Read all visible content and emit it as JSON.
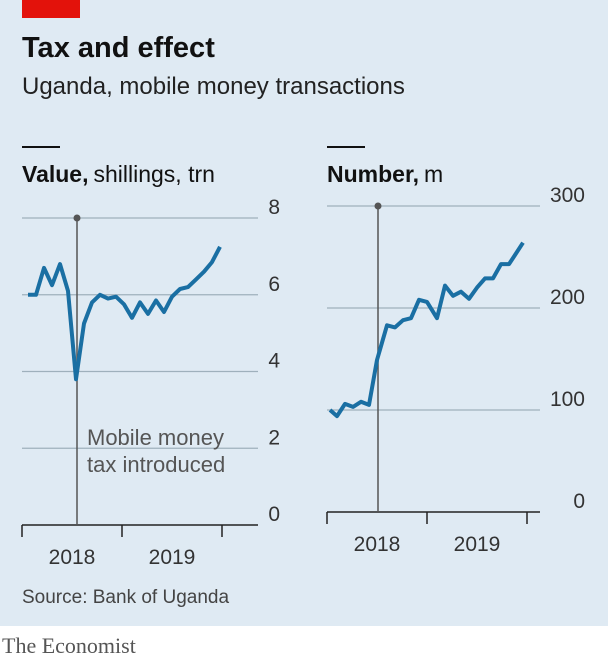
{
  "header": {
    "title": "Tax and effect",
    "subtitle": "Uganda, mobile money transactions"
  },
  "source": "Source: Bank of Uganda",
  "brand": "The Economist",
  "chart_data": [
    {
      "type": "line",
      "title": "Value,",
      "unit": "shillings, trn",
      "x": [
        2018.06,
        2018.14,
        2018.22,
        2018.3,
        2018.38,
        2018.46,
        2018.54,
        2018.62,
        2018.7,
        2018.78,
        2018.86,
        2018.94,
        2019.02,
        2019.1,
        2019.18,
        2019.26,
        2019.34,
        2019.42,
        2019.5,
        2019.58,
        2019.66,
        2019.74,
        2019.82,
        2019.9,
        2019.98
      ],
      "series": [
        {
          "name": "Value",
          "color": "#1a6fa3",
          "values": [
            6.0,
            6.0,
            6.7,
            6.25,
            6.8,
            6.1,
            3.8,
            5.25,
            5.8,
            6.0,
            5.9,
            5.95,
            5.75,
            5.4,
            5.8,
            5.5,
            5.85,
            5.55,
            5.95,
            6.15,
            6.2,
            6.4,
            6.6,
            6.85,
            7.25
          ]
        }
      ],
      "xlim": [
        2018,
        2020
      ],
      "xticks": [
        2018,
        2019,
        2020
      ],
      "xlabels": [
        {
          "value": 2018.5,
          "label": "2018"
        },
        {
          "value": 2019.5,
          "label": "2019"
        }
      ],
      "ylim": [
        0,
        8
      ],
      "yticks": [
        0,
        2,
        4,
        6,
        8
      ],
      "grid": true,
      "annotation": {
        "x": 2018.55,
        "lines": [
          "Mobile money",
          "tax introduced"
        ]
      }
    },
    {
      "type": "line",
      "title": "Number,",
      "unit": "m",
      "x": [
        2018.03,
        2018.1,
        2018.18,
        2018.26,
        2018.34,
        2018.42,
        2018.5,
        2018.6,
        2018.68,
        2018.76,
        2018.84,
        2018.92,
        2019.0,
        2019.1,
        2019.18,
        2019.26,
        2019.34,
        2019.42,
        2019.5,
        2019.58,
        2019.66,
        2019.74,
        2019.82,
        2019.88,
        2019.96
      ],
      "series": [
        {
          "name": "Number",
          "color": "#1a6fa3",
          "values": [
            100,
            94,
            106,
            103,
            108,
            105,
            149,
            183,
            181,
            188,
            190,
            208,
            206,
            190,
            222,
            212,
            216,
            209,
            220,
            229,
            229,
            243,
            243,
            252,
            264
          ]
        }
      ],
      "xlim": [
        2018,
        2020
      ],
      "xticks": [
        2018,
        2019,
        2020
      ],
      "xlabels": [
        {
          "value": 2018.5,
          "label": "2018"
        },
        {
          "value": 2019.5,
          "label": "2019"
        }
      ],
      "ylim": [
        0,
        300
      ],
      "yticks": [
        0,
        100,
        200,
        300
      ],
      "grid": true,
      "annotation": {
        "x": 2018.51
      }
    }
  ]
}
